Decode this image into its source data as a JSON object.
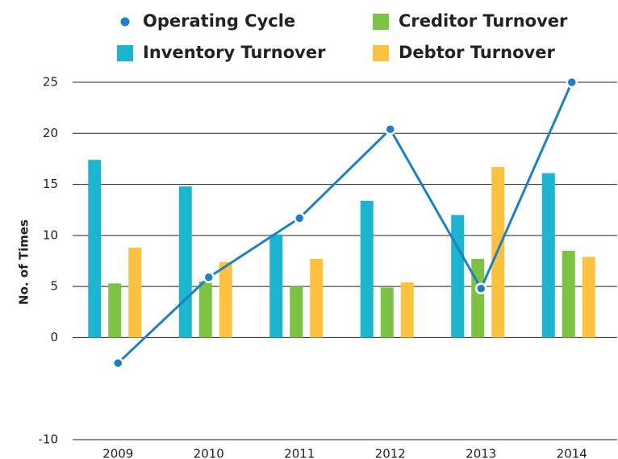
{
  "chart_data": {
    "type": "bar",
    "y_label": "No. of Times",
    "categories": [
      "2009",
      "2010",
      "2011",
      "2012",
      "2013",
      "2014"
    ],
    "series": [
      {
        "name": "Inventory Turnover",
        "color": "#1cb4cf",
        "values": [
          17.4,
          14.8,
          10.1,
          13.4,
          12.0,
          16.1
        ]
      },
      {
        "name": "Creditor Turnover",
        "color": "#7cc243",
        "values": [
          5.3,
          5.5,
          5.0,
          4.9,
          7.7,
          8.5
        ]
      },
      {
        "name": "Debtor Turnover",
        "color": "#fbc13f",
        "values": [
          8.8,
          7.4,
          7.7,
          5.4,
          16.7,
          7.9
        ]
      },
      {
        "name": "Operating Cycle",
        "type": "line",
        "color": "#1f7fc4",
        "values": [
          -2.5,
          5.9,
          11.7,
          20.4,
          4.8,
          25
        ]
      }
    ],
    "ylim": [
      -10,
      25
    ],
    "yticks": [
      -10,
      0,
      5,
      10,
      15,
      20,
      25
    ],
    "grid": true
  }
}
